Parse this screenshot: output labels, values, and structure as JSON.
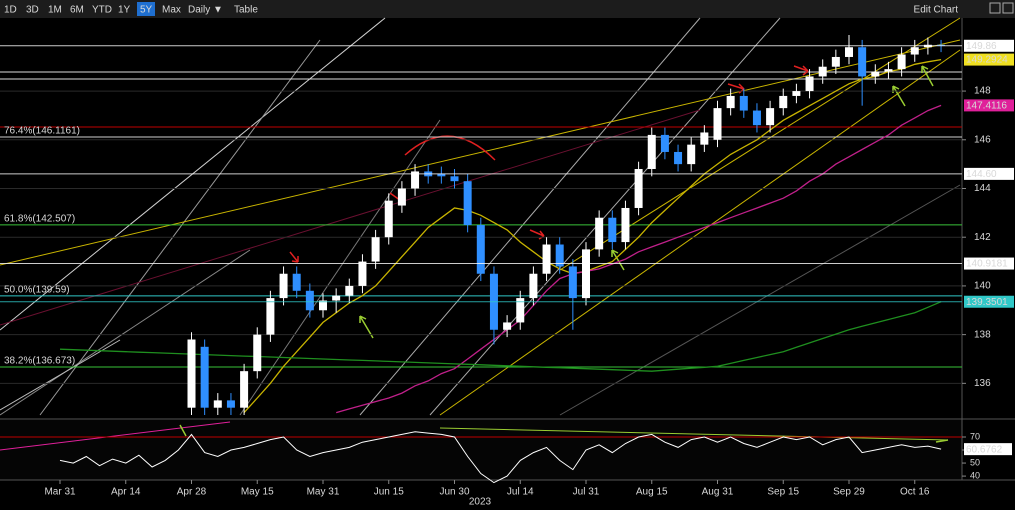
{
  "toolbar": {
    "buttons": [
      "1D",
      "3D",
      "1M",
      "6M",
      "YTD",
      "1Y",
      "5Y",
      "Max",
      "Daily ▼",
      "Table"
    ],
    "selected": 6,
    "right": "Edit Chart"
  },
  "chart_data": {
    "type": "candlestick",
    "categories": [
      "Mar 31",
      null,
      null,
      null,
      null,
      "Apr 14",
      null,
      null,
      null,
      null,
      "Apr 28",
      null,
      null,
      null,
      null,
      "May 15",
      null,
      null,
      null,
      null,
      "May 31",
      null,
      null,
      null,
      null,
      "Jun 15",
      null,
      null,
      null,
      null,
      "Jun 30",
      null,
      null,
      null,
      null,
      "Jul 14",
      null,
      null,
      null,
      null,
      "Jul 31",
      null,
      null,
      null,
      null,
      "Aug 15",
      null,
      null,
      null,
      null,
      "Aug 31",
      null,
      null,
      null,
      null,
      "Sep 15",
      null,
      null,
      null,
      null,
      "Sep 29",
      null,
      null,
      null,
      null,
      "Oct 16",
      null,
      null
    ],
    "x_year_label": "2023",
    "open": [
      null,
      null,
      null,
      null,
      null,
      null,
      null,
      null,
      null,
      null,
      135.0,
      137.5,
      135.0,
      135.3,
      135.0,
      136.5,
      138.0,
      139.5,
      140.5,
      139.8,
      139.0,
      139.4,
      139.6,
      140.0,
      141.0,
      142.0,
      143.3,
      144.0,
      144.7,
      144.6,
      144.5,
      144.3,
      142.5,
      140.5,
      138.2,
      138.5,
      139.5,
      140.5,
      141.7,
      140.8,
      139.5,
      141.5,
      142.8,
      141.8,
      143.2,
      144.8,
      146.2,
      145.5,
      145.0,
      145.8,
      146.0,
      147.3,
      147.8,
      147.2,
      146.6,
      147.3,
      147.8,
      148.0,
      148.6,
      149.0,
      149.4,
      149.8,
      148.6,
      148.8,
      148.9,
      149.5,
      149.8,
      149.9
    ],
    "high": [
      null,
      null,
      null,
      null,
      null,
      null,
      null,
      null,
      null,
      null,
      138.1,
      137.8,
      135.6,
      135.6,
      136.8,
      138.3,
      139.8,
      140.8,
      140.8,
      140.1,
      139.7,
      139.9,
      140.3,
      141.3,
      142.3,
      143.8,
      144.3,
      145.0,
      145.0,
      144.9,
      144.8,
      144.6,
      142.8,
      140.8,
      138.8,
      139.8,
      140.8,
      142.0,
      142.0,
      141.1,
      141.8,
      143.1,
      143.1,
      143.5,
      145.1,
      146.5,
      146.5,
      145.8,
      146.1,
      146.6,
      147.6,
      148.1,
      148.1,
      147.5,
      147.6,
      148.1,
      148.3,
      148.9,
      149.3,
      149.7,
      150.3,
      150.1,
      149.1,
      149.2,
      149.8,
      150.1,
      150.2,
      150.1
    ],
    "low": [
      null,
      null,
      null,
      null,
      null,
      null,
      null,
      null,
      null,
      null,
      134.7,
      134.7,
      134.7,
      134.7,
      134.7,
      136.2,
      137.7,
      139.2,
      139.5,
      138.7,
      138.7,
      138.9,
      139.3,
      139.7,
      140.7,
      141.7,
      143.0,
      143.7,
      144.2,
      144.2,
      144.0,
      142.2,
      140.2,
      137.6,
      137.9,
      138.2,
      139.2,
      140.2,
      140.5,
      138.2,
      139.2,
      141.2,
      141.5,
      141.5,
      142.9,
      144.5,
      145.2,
      144.7,
      144.7,
      145.5,
      145.7,
      147.0,
      146.9,
      146.3,
      146.3,
      147.0,
      147.5,
      147.7,
      148.3,
      148.7,
      149.1,
      147.4,
      148.3,
      148.5,
      148.6,
      149.2,
      149.5,
      149.6
    ],
    "close": [
      null,
      null,
      null,
      null,
      null,
      null,
      null,
      null,
      null,
      null,
      137.8,
      135.0,
      135.3,
      135.0,
      136.5,
      138.0,
      139.5,
      140.5,
      139.8,
      139.0,
      139.4,
      139.6,
      140.0,
      141.0,
      142.0,
      143.5,
      144.0,
      144.7,
      144.5,
      144.5,
      144.3,
      142.5,
      140.5,
      138.2,
      138.5,
      139.5,
      140.5,
      141.7,
      140.8,
      139.5,
      141.5,
      142.8,
      141.8,
      143.2,
      144.8,
      146.2,
      145.5,
      145.0,
      145.8,
      146.3,
      147.3,
      147.8,
      147.2,
      146.6,
      147.3,
      147.8,
      148.0,
      148.6,
      149.0,
      149.4,
      149.8,
      148.6,
      148.8,
      148.9,
      149.5,
      149.8,
      149.9,
      149.86
    ],
    "up_color": "#ffffff",
    "down_color": "#2f8fff",
    "series": [
      {
        "color": "#c8b400",
        "values": [
          null,
          null,
          null,
          null,
          null,
          null,
          null,
          null,
          null,
          null,
          null,
          null,
          null,
          null,
          134.8,
          135.4,
          136.0,
          136.7,
          137.3,
          137.9,
          138.5,
          138.9,
          139.3,
          139.6,
          140.0,
          140.6,
          141.2,
          141.8,
          142.4,
          142.8,
          143.2,
          143.1,
          142.9,
          142.6,
          142.3,
          141.8,
          141.4,
          141.0,
          140.7,
          140.5,
          140.6,
          140.8,
          141.0,
          141.5,
          142.0,
          142.6,
          143.1,
          143.6,
          144.1,
          144.6,
          145.0,
          145.4,
          145.7,
          146.0,
          146.4,
          146.8,
          147.1,
          147.4,
          147.7,
          148.0,
          148.3,
          148.5,
          148.6,
          148.8,
          148.9,
          149.1,
          149.2,
          149.2924
        ]
      },
      {
        "color": "#c0208a",
        "values": [
          null,
          null,
          null,
          null,
          null,
          null,
          null,
          null,
          null,
          null,
          null,
          null,
          null,
          null,
          null,
          null,
          null,
          null,
          null,
          null,
          null,
          134.8,
          134.95,
          135.1,
          135.25,
          135.4,
          135.6,
          135.9,
          136.1,
          136.4,
          136.6,
          137.0,
          137.4,
          137.8,
          138.2,
          138.6,
          139.2,
          139.8,
          140.3,
          140.5,
          140.6,
          140.7,
          140.9,
          141.1,
          141.4,
          141.6,
          141.8,
          142.0,
          142.2,
          142.4,
          142.6,
          142.8,
          143.0,
          143.2,
          143.4,
          143.6,
          143.9,
          144.3,
          144.6,
          145.0,
          145.3,
          145.6,
          145.9,
          146.2,
          146.6,
          146.9,
          147.2,
          147.4116
        ]
      },
      {
        "color": "#1f8f1f",
        "values": [
          137.4,
          137.38,
          137.36,
          137.34,
          137.32,
          137.3,
          137.28,
          137.26,
          137.24,
          137.22,
          137.2,
          137.18,
          137.16,
          137.14,
          137.12,
          137.1,
          137.08,
          137.06,
          137.04,
          137.02,
          137.0,
          136.98,
          136.96,
          136.94,
          136.92,
          136.9,
          136.88,
          136.86,
          136.84,
          136.82,
          136.8,
          136.78,
          136.76,
          136.74,
          136.72,
          136.7,
          136.68,
          136.66,
          136.64,
          136.62,
          136.6,
          136.58,
          136.56,
          136.54,
          136.52,
          136.5,
          136.54,
          136.58,
          136.62,
          136.66,
          136.7,
          136.82,
          136.94,
          137.06,
          137.18,
          137.3,
          137.48,
          137.66,
          137.84,
          138.02,
          138.2,
          138.34,
          138.48,
          138.62,
          138.76,
          138.9,
          139.12,
          139.3501
        ]
      }
    ],
    "ylim": [
      134.7,
      151.0
    ],
    "yticks": [
      136,
      138,
      140,
      142,
      144,
      146,
      148
    ],
    "levels": [
      {
        "value": 149.86,
        "color": "#ffffff",
        "line": true
      },
      {
        "value": 149.2924,
        "color": "#f0e020",
        "line": false
      },
      {
        "value": 147.4116,
        "color": "#e0209a",
        "line": false
      },
      {
        "value": 144.6,
        "label": "144.60",
        "color": "#ffffff",
        "line": true
      },
      {
        "value": 140.9181,
        "color": "#ffffff",
        "line": true
      },
      {
        "value": 139.3501,
        "color": "#30c8c8",
        "line": true
      }
    ],
    "fib_levels": [
      {
        "value": 146.1161,
        "label": "76.4%(146.1161)",
        "color": "#cfcfcf"
      },
      {
        "value": 142.507,
        "label": "61.8%(142.507)",
        "color": "#39c239"
      },
      {
        "value": 139.59,
        "label": "50.0%(139.59)",
        "color": "#30c8c8"
      },
      {
        "value": 136.673,
        "label": "38.2%(136.673)",
        "color": "#39c239"
      }
    ],
    "rsi": {
      "color": "#ffffff",
      "values": [
        52,
        50,
        55,
        48,
        53,
        50,
        56,
        47,
        52,
        60,
        72,
        58,
        55,
        60,
        62,
        65,
        68,
        70,
        60,
        55,
        58,
        60,
        62,
        66,
        68,
        70,
        72,
        74,
        73,
        72,
        70,
        55,
        42,
        35,
        40,
        52,
        58,
        62,
        52,
        45,
        60,
        64,
        58,
        65,
        70,
        72,
        66,
        62,
        68,
        70,
        66,
        70,
        65,
        62,
        66,
        70,
        68,
        70,
        64,
        68,
        70,
        58,
        60,
        62,
        64,
        62,
        63,
        60.6762
      ],
      "ylim": [
        37,
        81.5
      ],
      "yticks": [
        40,
        50,
        60,
        70
      ]
    }
  }
}
